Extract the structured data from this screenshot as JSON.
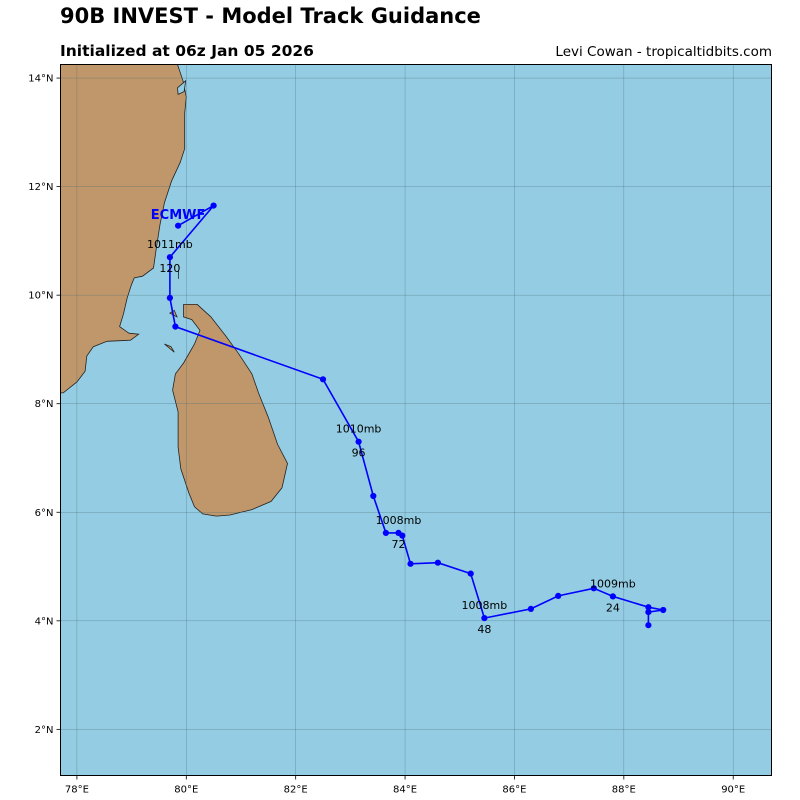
{
  "header": {
    "title": "90B INVEST - Model Track Guidance",
    "subtitle": "Initialized at 06z Jan 05 2026",
    "credit": "Levi Cowan - tropicaltidbits.com"
  },
  "map": {
    "lon_range": [
      77.7,
      90.7
    ],
    "lat_range": [
      1.15,
      14.25
    ],
    "lon_ticks": [
      {
        "value": 78,
        "label": "78°E"
      },
      {
        "value": 80,
        "label": "80°E"
      },
      {
        "value": 82,
        "label": "82°E"
      },
      {
        "value": 84,
        "label": "84°E"
      },
      {
        "value": 86,
        "label": "86°E"
      },
      {
        "value": 88,
        "label": "88°E"
      },
      {
        "value": 90,
        "label": "90°E"
      }
    ],
    "lat_ticks": [
      {
        "value": 2,
        "label": "2°N"
      },
      {
        "value": 4,
        "label": "4°N"
      },
      {
        "value": 6,
        "label": "6°N"
      },
      {
        "value": 8,
        "label": "8°N"
      },
      {
        "value": 10,
        "label": "10°N"
      },
      {
        "value": 12,
        "label": "12°N"
      },
      {
        "value": 14,
        "label": "14°N"
      }
    ],
    "colors": {
      "ocean": "#94cde3",
      "land": "#c0976b",
      "coast": "#222222",
      "grid": "#4a6e78",
      "track": "#0000ff"
    },
    "india_coast": [
      [
        79.84,
        14.25
      ],
      [
        79.94,
        13.95
      ],
      [
        80.0,
        13.65
      ],
      [
        79.97,
        13.35
      ],
      [
        79.97,
        13.0
      ],
      [
        79.97,
        12.7
      ],
      [
        79.89,
        12.45
      ],
      [
        79.73,
        12.1
      ],
      [
        79.6,
        11.7
      ],
      [
        79.52,
        11.3
      ],
      [
        79.45,
        10.85
      ],
      [
        79.4,
        10.5
      ],
      [
        79.2,
        10.35
      ],
      [
        79.05,
        10.32
      ],
      [
        79.0,
        10.2
      ],
      [
        78.92,
        9.95
      ],
      [
        78.85,
        9.65
      ],
      [
        78.78,
        9.42
      ],
      [
        78.95,
        9.3
      ],
      [
        79.13,
        9.28
      ],
      [
        78.98,
        9.17
      ],
      [
        78.55,
        9.15
      ],
      [
        78.3,
        9.05
      ],
      [
        78.18,
        8.88
      ],
      [
        78.15,
        8.6
      ],
      [
        78.0,
        8.4
      ],
      [
        77.75,
        8.2
      ],
      [
        77.7,
        8.2
      ],
      [
        77.7,
        14.25
      ]
    ],
    "india_cutout": [
      [
        79.85,
        13.7
      ],
      [
        79.96,
        13.75
      ],
      [
        79.99,
        13.95
      ],
      [
        79.84,
        13.82
      ]
    ],
    "india_lakeshore": [
      [
        79.86,
        10.45
      ],
      [
        79.86,
        10.3
      ]
    ],
    "srilanka_coast": [
      [
        79.95,
        9.83
      ],
      [
        80.2,
        9.83
      ],
      [
        80.45,
        9.6
      ],
      [
        80.72,
        9.25
      ],
      [
        80.95,
        8.93
      ],
      [
        81.2,
        8.55
      ],
      [
        81.32,
        8.2
      ],
      [
        81.5,
        7.75
      ],
      [
        81.67,
        7.25
      ],
      [
        81.85,
        6.9
      ],
      [
        81.75,
        6.45
      ],
      [
        81.55,
        6.2
      ],
      [
        81.2,
        6.05
      ],
      [
        80.8,
        5.95
      ],
      [
        80.55,
        5.93
      ],
      [
        80.3,
        5.97
      ],
      [
        80.15,
        6.1
      ],
      [
        80.05,
        6.35
      ],
      [
        79.9,
        6.8
      ],
      [
        79.85,
        7.2
      ],
      [
        79.85,
        7.55
      ],
      [
        79.85,
        7.85
      ],
      [
        79.75,
        8.25
      ],
      [
        79.8,
        8.55
      ],
      [
        79.95,
        8.75
      ],
      [
        80.15,
        9.1
      ],
      [
        80.25,
        9.35
      ],
      [
        80.1,
        9.55
      ],
      [
        79.95,
        9.6
      ]
    ],
    "islands": [
      [
        [
          79.7,
          9.67
        ],
        [
          79.83,
          9.6
        ],
        [
          79.78,
          9.72
        ]
      ],
      [
        [
          79.6,
          9.1
        ],
        [
          79.78,
          8.95
        ],
        [
          79.72,
          9.05
        ]
      ]
    ]
  },
  "track": {
    "model": "ECMWF",
    "model_label_pos": {
      "lon": 79.85,
      "lat": 11.5
    },
    "points": [
      {
        "lon": 88.45,
        "lat": 3.92
      },
      {
        "lon": 88.45,
        "lat": 4.16
      },
      {
        "lon": 88.72,
        "lat": 4.2
      },
      {
        "lon": 88.45,
        "lat": 4.25
      },
      {
        "lon": 87.8,
        "lat": 4.45
      },
      {
        "lon": 87.45,
        "lat": 4.6
      },
      {
        "lon": 86.8,
        "lat": 4.46
      },
      {
        "lon": 86.3,
        "lat": 4.22
      },
      {
        "lon": 85.45,
        "lat": 4.05
      },
      {
        "lon": 85.2,
        "lat": 4.87
      },
      {
        "lon": 84.6,
        "lat": 5.07
      },
      {
        "lon": 84.1,
        "lat": 5.05
      },
      {
        "lon": 83.95,
        "lat": 5.57
      },
      {
        "lon": 83.88,
        "lat": 5.62
      },
      {
        "lon": 83.65,
        "lat": 5.62
      },
      {
        "lon": 83.42,
        "lat": 6.3
      },
      {
        "lon": 83.15,
        "lat": 7.3
      },
      {
        "lon": 82.5,
        "lat": 8.45
      },
      {
        "lon": 79.8,
        "lat": 9.42
      },
      {
        "lon": 79.7,
        "lat": 9.95
      },
      {
        "lon": 79.7,
        "lat": 10.7
      },
      {
        "lon": 80.5,
        "lat": 11.65
      },
      {
        "lon": 79.85,
        "lat": 11.28
      }
    ],
    "annotations": [
      {
        "pressure": "1009mb",
        "hour": "24",
        "lon": 87.8,
        "lat": 4.45
      },
      {
        "pressure": "1008mb",
        "hour": "48",
        "lon": 85.45,
        "lat": 4.05
      },
      {
        "pressure": "1008mb",
        "hour": "72",
        "lon": 83.88,
        "lat": 5.62
      },
      {
        "pressure": "1010mb",
        "hour": "96",
        "lon": 83.15,
        "lat": 7.3
      },
      {
        "pressure": "1011mb",
        "hour": "120",
        "lon": 79.7,
        "lat": 10.7
      }
    ]
  }
}
